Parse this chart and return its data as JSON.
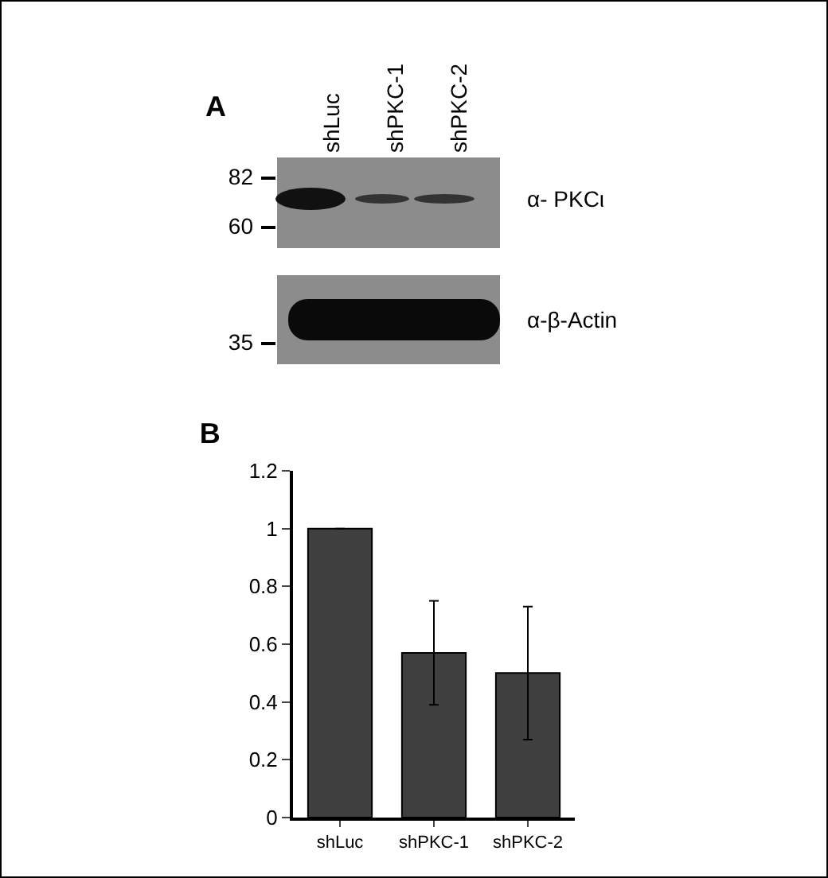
{
  "chart_data": [
    {
      "type": "other",
      "title": "A",
      "annotations": [
        "shLuc",
        "shPKC-1",
        "shPKC-2",
        "82",
        "60",
        "α- PKCι",
        "α-β-Actin",
        "35"
      ]
    },
    {
      "type": "bar",
      "title": "B",
      "categories": [
        "shLuc",
        "shPKC-1",
        "shPKC-2"
      ],
      "values": [
        1,
        0.57,
        0.5
      ],
      "errors": [
        null,
        [
          0.39,
          0.75
        ],
        [
          0.27,
          0.73
        ]
      ],
      "color": "#404040",
      "ylim": [
        0,
        1.2
      ],
      "yticks": [
        0,
        0.2,
        0.4,
        0.6,
        0.8,
        1,
        1.2
      ],
      "grid": false
    }
  ]
}
